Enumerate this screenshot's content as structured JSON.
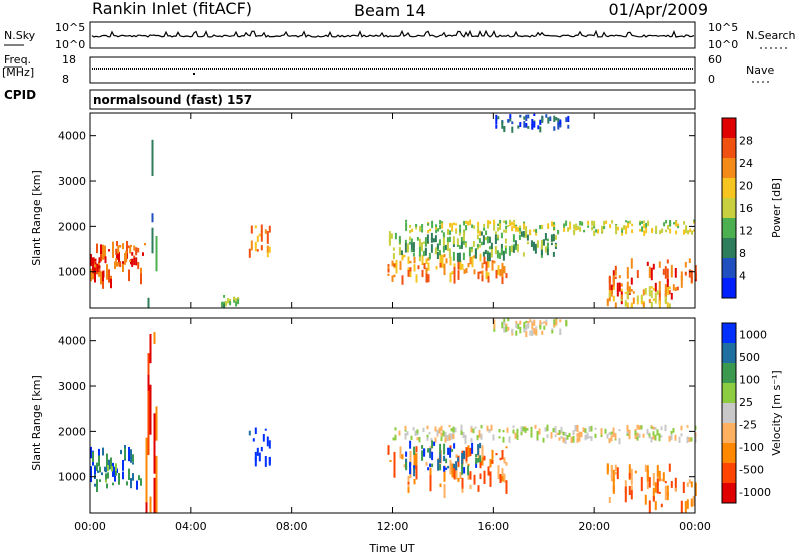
{
  "header": {
    "station": "Rankin Inlet (fitACF)",
    "beam": "Beam 14",
    "date": "01/Apr/2009"
  },
  "strip_sky": {
    "left_label": "N.Sky",
    "right_label": "N.Search",
    "left_ticks": [
      "10^5",
      "10^0"
    ],
    "right_ticks": [
      "10^5",
      "10^0"
    ]
  },
  "strip_freq": {
    "left_label_1": "Freq.",
    "left_label_2": "[MHz]",
    "right_label": "Nave",
    "left_ticks": [
      "18",
      "8"
    ],
    "right_ticks": [
      "60",
      "0"
    ]
  },
  "strip_cpid": {
    "label": "CPID",
    "text": "normalsound (fast) 157"
  },
  "colors": {
    "power_scale": [
      "#0020ff",
      "#2050c0",
      "#2e7d5a",
      "#4caf50",
      "#c8d040",
      "#f7c520",
      "#f48a18",
      "#f05010",
      "#e00000"
    ],
    "velocity_scale": [
      "#e00000",
      "#ff4400",
      "#ff8800",
      "#ffb060",
      "#c8c8c8",
      "#8ccc40",
      "#3c9a50",
      "#1f6fa0",
      "#0030ff"
    ]
  },
  "chart_data": [
    {
      "type": "heatmap",
      "title": "",
      "xlabel": "",
      "ylabel": "Slant Range [km]",
      "xlim": [
        "00:00",
        "24:00"
      ],
      "ylim": [
        200,
        4500
      ],
      "x_tick_labels": [
        "00:00",
        "04:00",
        "08:00",
        "12:00",
        "16:00",
        "20:00",
        "00:00"
      ],
      "y_tick_labels": [
        "1000",
        "2000",
        "3000",
        "4000"
      ],
      "y_ticks": [
        1000,
        2000,
        3000,
        4000
      ],
      "colorbar": {
        "label": "Power [dB]",
        "tick_labels": [
          "4",
          "8",
          "12",
          "16",
          "20",
          "24",
          "28"
        ],
        "ticks": [
          4,
          8,
          12,
          16,
          20,
          24,
          28
        ],
        "range": [
          0,
          32
        ]
      },
      "echo_regions": [
        {
          "t0": 0.0,
          "t1": 2.2,
          "r0": 800,
          "r1": 1700,
          "level": 7
        },
        {
          "t0": 0.1,
          "t1": 0.6,
          "r0": 1000,
          "r1": 1400,
          "level": 8
        },
        {
          "t0": 1.0,
          "t1": 1.9,
          "r0": 1200,
          "r1": 1600,
          "level": 7
        },
        {
          "t0": 2.2,
          "t1": 2.6,
          "r0": 300,
          "r1": 4300,
          "level": 2
        },
        {
          "t0": 5.2,
          "t1": 5.9,
          "r0": 250,
          "r1": 500,
          "level": 3
        },
        {
          "t0": 6.3,
          "t1": 7.1,
          "r0": 1400,
          "r1": 2100,
          "level": 6
        },
        {
          "t0": 11.8,
          "t1": 16.5,
          "r0": 900,
          "r1": 1400,
          "level": 6
        },
        {
          "t0": 12.5,
          "t1": 24.0,
          "r0": 1900,
          "r1": 2150,
          "level": 4
        },
        {
          "t0": 11.7,
          "t1": 18.5,
          "r0": 1400,
          "r1": 1900,
          "level": 3
        },
        {
          "t0": 20.5,
          "t1": 24.0,
          "r0": 500,
          "r1": 1300,
          "level": 7
        },
        {
          "t0": 20.5,
          "t1": 23.0,
          "r0": 300,
          "r1": 700,
          "level": 5
        },
        {
          "t0": 16.0,
          "t1": 19.0,
          "r0": 4200,
          "r1": 4500,
          "level": 1
        }
      ]
    },
    {
      "type": "heatmap",
      "title": "",
      "xlabel": "Time UT",
      "ylabel": "Slant Range [km]",
      "xlim": [
        "00:00",
        "24:00"
      ],
      "ylim": [
        200,
        4500
      ],
      "x_tick_labels": [
        "00:00",
        "04:00",
        "08:00",
        "12:00",
        "16:00",
        "20:00",
        "00:00"
      ],
      "y_tick_labels": [
        "1000",
        "2000",
        "3000",
        "4000"
      ],
      "y_ticks": [
        1000,
        2000,
        3000,
        4000
      ],
      "colorbar": {
        "label": "Velocity [m s⁻¹]",
        "tick_labels": [
          "1000",
          "500",
          "100",
          "25",
          "-25",
          "-100",
          "-500",
          "-1000"
        ]
      },
      "echo_regions": [
        {
          "t0": 0.0,
          "t1": 2.2,
          "r0": 800,
          "r1": 1700,
          "level": 7
        },
        {
          "t0": 0.2,
          "t1": 1.0,
          "r0": 900,
          "r1": 1300,
          "level": 6
        },
        {
          "t0": 2.2,
          "t1": 2.6,
          "r0": 300,
          "r1": 4300,
          "level": 1
        },
        {
          "t0": 6.3,
          "t1": 7.1,
          "r0": 1400,
          "r1": 2100,
          "level": 8
        },
        {
          "t0": 11.8,
          "t1": 16.5,
          "r0": 800,
          "r1": 1700,
          "level": 2
        },
        {
          "t0": 12.0,
          "t1": 24.0,
          "r0": 1850,
          "r1": 2150,
          "level": 4
        },
        {
          "t0": 12.5,
          "t1": 15.5,
          "r0": 1200,
          "r1": 1800,
          "level": 7
        },
        {
          "t0": 20.5,
          "t1": 24.0,
          "r0": 400,
          "r1": 1300,
          "level": 2
        },
        {
          "t0": 16.0,
          "t1": 19.0,
          "r0": 4200,
          "r1": 4500,
          "level": 4
        }
      ]
    }
  ]
}
